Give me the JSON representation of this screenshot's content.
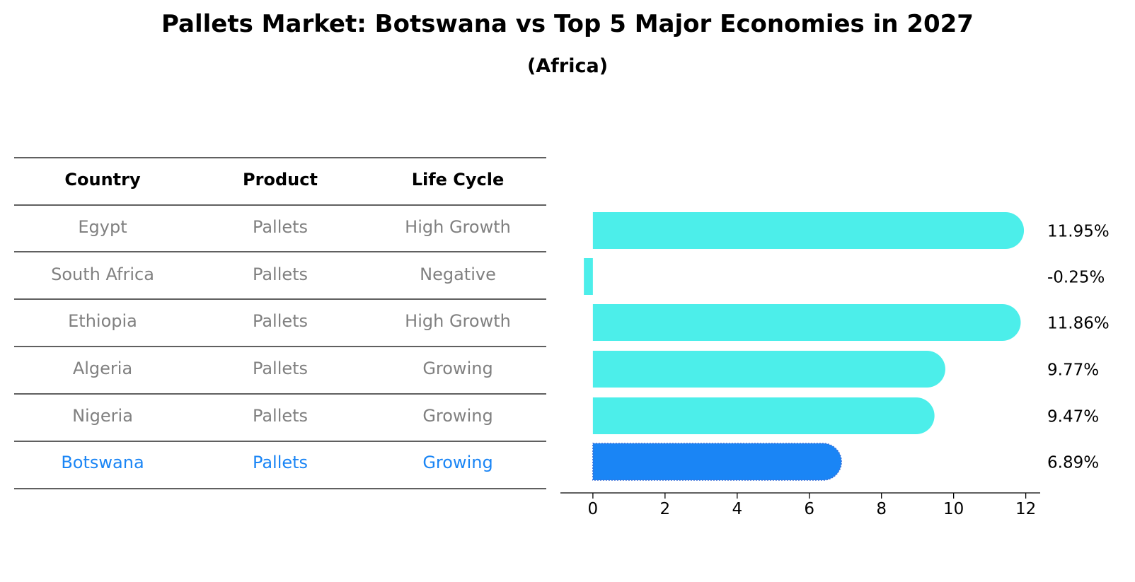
{
  "title": "Pallets Market: Botswana vs Top 5 Major Economies in 2027",
  "subtitle": "(Africa)",
  "colors": {
    "bar": "#4ceeea",
    "highlight_bar": "#1a85f5",
    "table_text": "#808080",
    "highlight_text": "#1a85f5",
    "rule": "#000000"
  },
  "table": {
    "headers": [
      "Country",
      "Product",
      "Life Cycle"
    ],
    "rows": [
      [
        "Egypt",
        "Pallets",
        "High Growth"
      ],
      [
        "South Africa",
        "Pallets",
        "Negative"
      ],
      [
        "Ethiopia",
        "Pallets",
        "High Growth"
      ],
      [
        "Algeria",
        "Pallets",
        "Growing"
      ],
      [
        "Nigeria",
        "Pallets",
        "Growing"
      ],
      [
        "Botswana",
        "Pallets",
        "Growing"
      ]
    ],
    "highlight_row": 5
  },
  "chart_data": {
    "type": "bar",
    "orientation": "horizontal",
    "categories": [
      "Egypt",
      "South Africa",
      "Ethiopia",
      "Algeria",
      "Nigeria",
      "Botswana"
    ],
    "values": [
      11.95,
      -0.25,
      11.86,
      9.77,
      9.47,
      6.89
    ],
    "value_labels": [
      "11.95%",
      "-0.25%",
      "11.86%",
      "9.77%",
      "9.47%",
      "6.89%"
    ],
    "highlight_index": 5,
    "xlim": [
      -0.9,
      12.4
    ],
    "xticks": [
      0,
      2,
      4,
      6,
      8,
      10,
      12
    ],
    "xlabel": "",
    "ylabel": "",
    "grid": false
  }
}
